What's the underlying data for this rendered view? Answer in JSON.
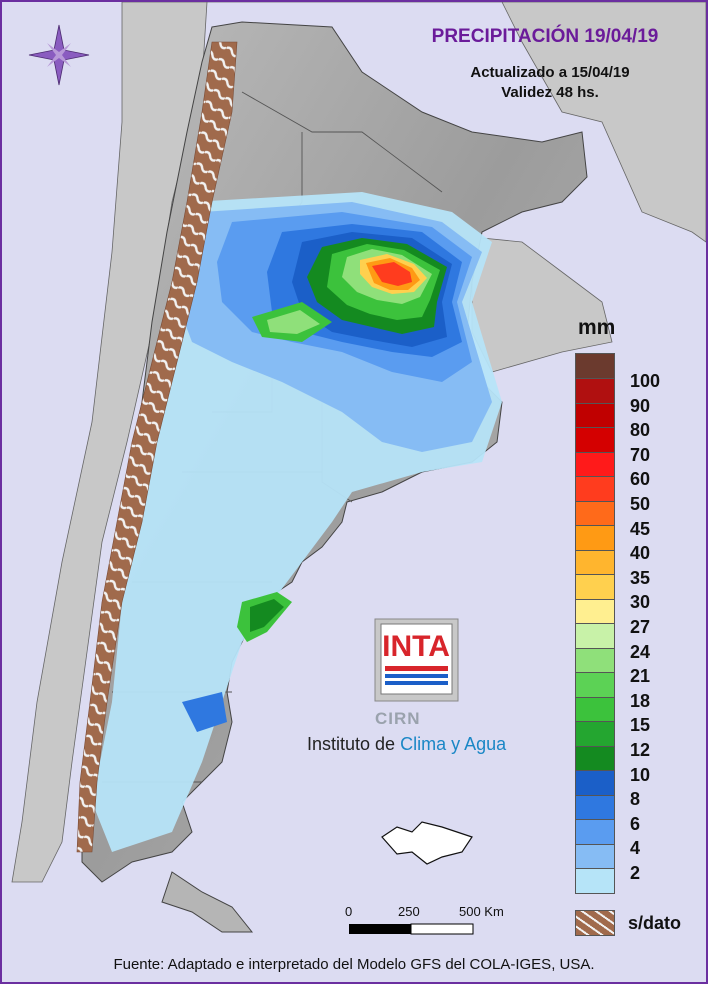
{
  "header": {
    "title": "PRECIPITACIÓN 19/04/19",
    "updated": "Actualizado a 15/04/19",
    "validity": "Validez 48 hs."
  },
  "legend": {
    "unit": "mm",
    "bins": [
      {
        "label": "100",
        "color": "#b01010"
      },
      {
        "label": "90",
        "color": "#c00000"
      },
      {
        "label": "80",
        "color": "#d40000"
      },
      {
        "label": "70",
        "color": "#ff1a1a"
      },
      {
        "label": "60",
        "color": "#ff3c1e"
      },
      {
        "label": "50",
        "color": "#ff6a1a"
      },
      {
        "label": "45",
        "color": "#ff9a14"
      },
      {
        "label": "40",
        "color": "#ffb52e"
      },
      {
        "label": "35",
        "color": "#ffd04e"
      },
      {
        "label": "30",
        "color": "#ffef90"
      },
      {
        "label": "27",
        "color": "#c8f2a8"
      },
      {
        "label": "24",
        "color": "#8fe07a"
      },
      {
        "label": "21",
        "color": "#5cd255"
      },
      {
        "label": "18",
        "color": "#3cc23c"
      },
      {
        "label": "15",
        "color": "#24a630"
      },
      {
        "label": "12",
        "color": "#148a20"
      },
      {
        "label": "10",
        "color": "#1b5fc8"
      },
      {
        "label": "8",
        "color": "#2f78e0"
      },
      {
        "label": "6",
        "color": "#5a9cf0"
      },
      {
        "label": "4",
        "color": "#86bcf4"
      },
      {
        "label": "2",
        "color": "#b6e4f8"
      }
    ],
    "top_color": "#6b3a2e",
    "nodata_label": "s/dato",
    "nodata_color": "#a06a4c"
  },
  "scale": {
    "labels": [
      "0",
      "250",
      "500 Km"
    ]
  },
  "logo": {
    "brand": "INTA",
    "unit": "CIRN",
    "name_prefix": "Instituto de",
    "name_suffix": "Clima y Agua"
  },
  "source": "Fuente: Adaptado e interpretado del Modelo GFS del COLA-IGES, USA.",
  "compass": {
    "icon": "compass-rose-icon"
  },
  "colors": {
    "ocean": "#dcdcf2",
    "land": "#a9a9a9",
    "neighbor_land": "#c8c8c8",
    "frame": "#6b2fa0"
  }
}
